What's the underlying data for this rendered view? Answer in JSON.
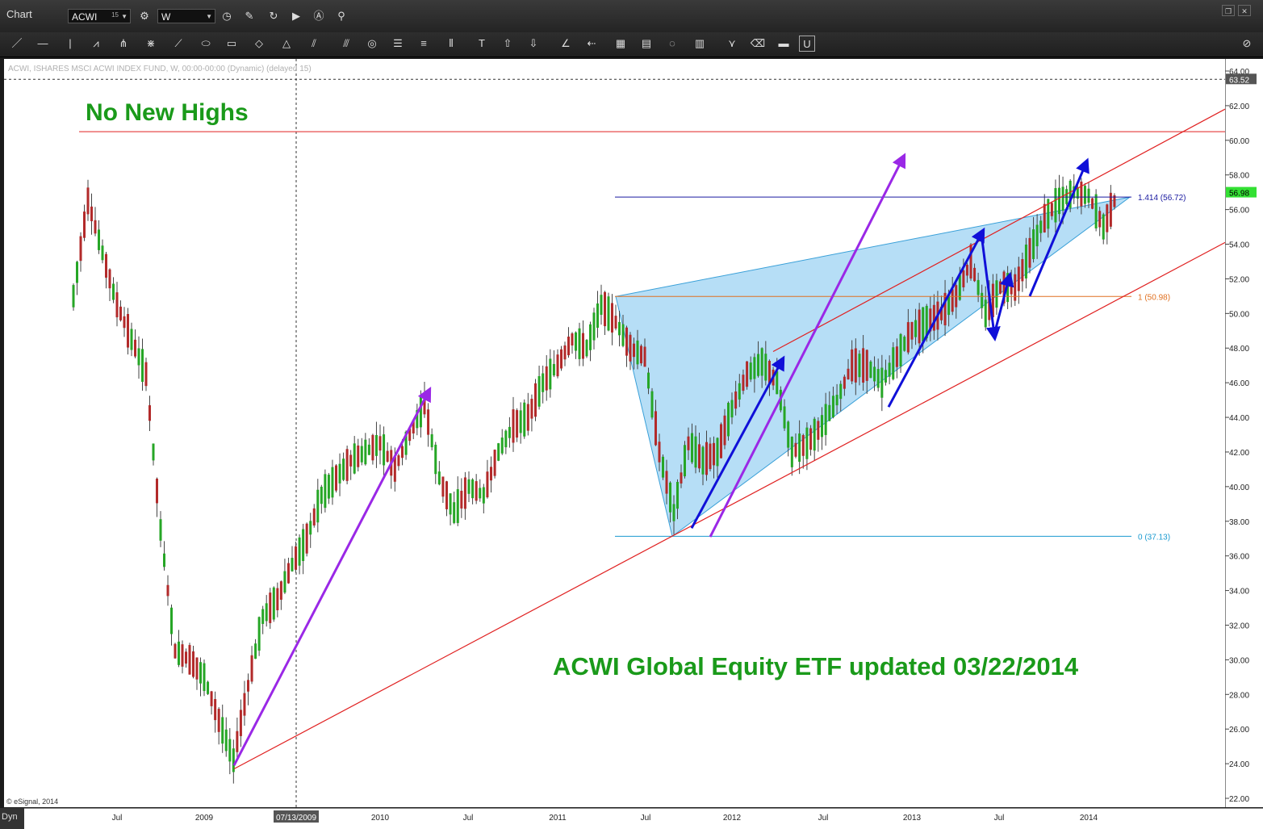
{
  "header": {
    "title": "Chart",
    "symbol": "ACWI",
    "symbol_superscript": "15",
    "interval": "W"
  },
  "chart_info": "ACWI, ISHARES MSCI ACWI INDEX FUND, W, 00:00-00:00 (Dynamic) (delayed 15)",
  "copyright": "© eSignal, 2014",
  "dyn_label": "Dyn",
  "annotations": {
    "no_new_highs": "No New Highs",
    "main_title": "ACWI Global Equity ETF updated 03/22/2014"
  },
  "colors": {
    "annotation_green": "#1a9a1a",
    "purple_arrow": "#9a28e6",
    "blue_arrow": "#1010d8",
    "channel_red": "#e02020",
    "pattern_fill": "#a9d8f5",
    "up_candle": "#26a626",
    "down_candle": "#b22a2a"
  },
  "chart_data": {
    "type": "candlestick",
    "title": "ACWI Global Equity ETF updated 03/22/2014",
    "ylim": [
      22,
      64.5
    ],
    "y_ticks": [
      "22.00",
      "24.00",
      "26.00",
      "28.00",
      "30.00",
      "32.00",
      "34.00",
      "36.00",
      "38.00",
      "40.00",
      "42.00",
      "44.00",
      "46.00",
      "48.00",
      "50.00",
      "52.00",
      "54.00",
      "56.00",
      "58.00",
      "60.00",
      "62.00",
      "64.00"
    ],
    "x_ticks": [
      "Jul",
      "2009",
      "07/13/2009",
      "2010",
      "Jul",
      "2011",
      "Jul",
      "2012",
      "Jul",
      "2013",
      "Jul",
      "2014"
    ],
    "price_labels": [
      {
        "label": "63.52",
        "value": 63.52,
        "color": "#ffffff",
        "bg": "#555555"
      },
      {
        "label": "56.98",
        "value": 56.98,
        "color": "#000000",
        "bg": "#33e033"
      }
    ],
    "fib_levels": [
      {
        "label": "1.414 (56.72)",
        "value": 56.72,
        "color": "#1a1aa0"
      },
      {
        "label": "1 (50.98)",
        "value": 50.98,
        "color": "#e07020"
      },
      {
        "label": "0 (37.13)",
        "value": 37.13,
        "color": "#1a9ad0"
      }
    ],
    "resistance": {
      "value": 60.5,
      "label": "No New Highs"
    },
    "channel": [
      {
        "from": [
          "2009-03",
          23.7
        ],
        "to": [
          "2014-04",
          53.8
        ]
      },
      {
        "from": [
          "2012-03",
          47.8
        ],
        "to": [
          "2014-04",
          61.8
        ]
      }
    ],
    "price_series": [
      {
        "x": "2008-04",
        "y": 51.0
      },
      {
        "x": "2008-05",
        "y": 56.5
      },
      {
        "x": "2008-06",
        "y": 53.5
      },
      {
        "x": "2008-07",
        "y": 50.5
      },
      {
        "x": "2008-08",
        "y": 48.5
      },
      {
        "x": "2008-09",
        "y": 46.5
      },
      {
        "x": "2008-10",
        "y": 37.5
      },
      {
        "x": "2008-11",
        "y": 30.5
      },
      {
        "x": "2008-12",
        "y": 30.0
      },
      {
        "x": "2009-01",
        "y": 29.0
      },
      {
        "x": "2009-02",
        "y": 26.5
      },
      {
        "x": "2009-03",
        "y": 24.2
      },
      {
        "x": "2009-04",
        "y": 28.5
      },
      {
        "x": "2009-05",
        "y": 32.5
      },
      {
        "x": "2009-06",
        "y": 33.5
      },
      {
        "x": "2009-07",
        "y": 35.5
      },
      {
        "x": "2009-08",
        "y": 37.0
      },
      {
        "x": "2009-09",
        "y": 39.5
      },
      {
        "x": "2009-10",
        "y": 40.5
      },
      {
        "x": "2009-11",
        "y": 41.5
      },
      {
        "x": "2009-12",
        "y": 42.0
      },
      {
        "x": "2010-01",
        "y": 42.5
      },
      {
        "x": "2010-02",
        "y": 41.0
      },
      {
        "x": "2010-03",
        "y": 43.0
      },
      {
        "x": "2010-04",
        "y": 44.8
      },
      {
        "x": "2010-05",
        "y": 40.5
      },
      {
        "x": "2010-06",
        "y": 38.5
      },
      {
        "x": "2010-07",
        "y": 40.0
      },
      {
        "x": "2010-08",
        "y": 39.5
      },
      {
        "x": "2010-09",
        "y": 42.0
      },
      {
        "x": "2010-10",
        "y": 43.5
      },
      {
        "x": "2010-11",
        "y": 44.0
      },
      {
        "x": "2010-12",
        "y": 46.0
      },
      {
        "x": "2011-01",
        "y": 47.0
      },
      {
        "x": "2011-02",
        "y": 48.5
      },
      {
        "x": "2011-03",
        "y": 48.0
      },
      {
        "x": "2011-04",
        "y": 50.5
      },
      {
        "x": "2011-05",
        "y": 49.5
      },
      {
        "x": "2011-06",
        "y": 48.0
      },
      {
        "x": "2011-07",
        "y": 47.5
      },
      {
        "x": "2011-08",
        "y": 42.0
      },
      {
        "x": "2011-09",
        "y": 38.5
      },
      {
        "x": "2011-10",
        "y": 42.5
      },
      {
        "x": "2011-11",
        "y": 41.5
      },
      {
        "x": "2011-12",
        "y": 42.0
      },
      {
        "x": "2012-01",
        "y": 44.5
      },
      {
        "x": "2012-02",
        "y": 46.5
      },
      {
        "x": "2012-03",
        "y": 47.2
      },
      {
        "x": "2012-04",
        "y": 46.0
      },
      {
        "x": "2012-05",
        "y": 42.0
      },
      {
        "x": "2012-06",
        "y": 42.5
      },
      {
        "x": "2012-07",
        "y": 43.5
      },
      {
        "x": "2012-08",
        "y": 45.0
      },
      {
        "x": "2012-09",
        "y": 47.0
      },
      {
        "x": "2012-10",
        "y": 47.0
      },
      {
        "x": "2012-11",
        "y": 46.0
      },
      {
        "x": "2012-12",
        "y": 47.5
      },
      {
        "x": "2013-01",
        "y": 49.0
      },
      {
        "x": "2013-02",
        "y": 49.5
      },
      {
        "x": "2013-03",
        "y": 50.0
      },
      {
        "x": "2013-04",
        "y": 51.0
      },
      {
        "x": "2013-05",
        "y": 53.0
      },
      {
        "x": "2013-06",
        "y": 50.0
      },
      {
        "x": "2013-07",
        "y": 51.5
      },
      {
        "x": "2013-08",
        "y": 51.5
      },
      {
        "x": "2013-09",
        "y": 53.5
      },
      {
        "x": "2013-10",
        "y": 55.5
      },
      {
        "x": "2013-11",
        "y": 56.5
      },
      {
        "x": "2013-12",
        "y": 57.0
      },
      {
        "x": "2014-01",
        "y": 56.8
      },
      {
        "x": "2014-02",
        "y": 55.0
      },
      {
        "x": "2014-03",
        "y": 56.98
      }
    ]
  }
}
